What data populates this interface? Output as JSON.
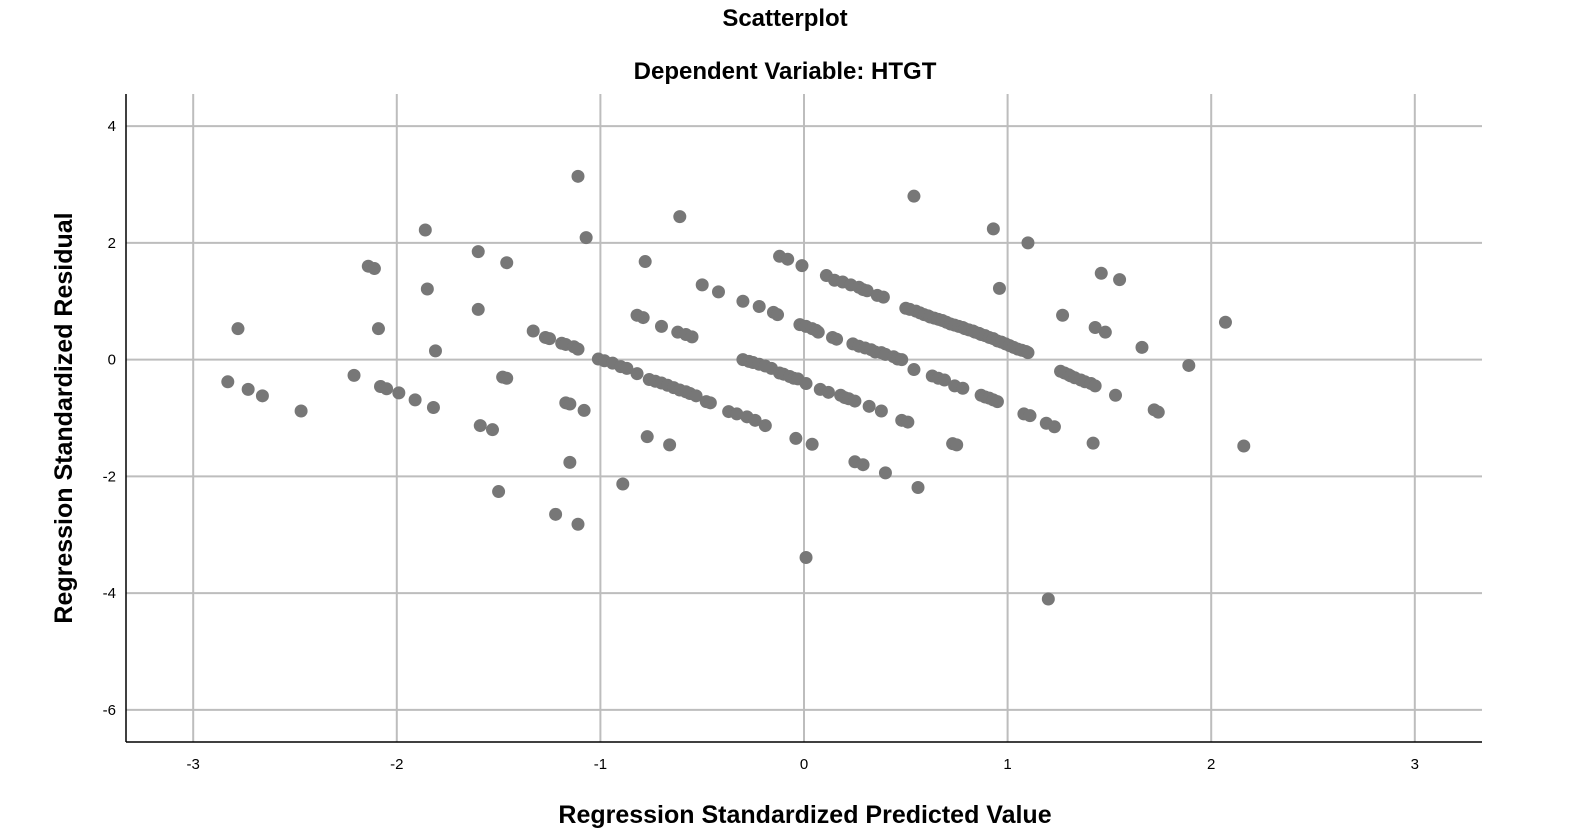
{
  "chart_data": {
    "type": "scatter",
    "title": "Scatterplot",
    "subtitle": "Dependent Variable: HTGT",
    "xlabel": "Regression Standardized Predicted Value",
    "ylabel": "Regression Standardized Residual",
    "xlim": [
      -3.33,
      3.33
    ],
    "ylim": [
      -6.55,
      4.55
    ],
    "xticks": [
      -3,
      -2,
      -1,
      0,
      1,
      2,
      3
    ],
    "yticks": [
      4,
      2,
      0,
      -2,
      -4,
      -6
    ],
    "grid": true,
    "marker_color": "#777777",
    "points": [
      [
        -2.83,
        -0.38
      ],
      [
        -2.78,
        0.53
      ],
      [
        -2.73,
        -0.51
      ],
      [
        -2.66,
        -0.62
      ],
      [
        -2.47,
        -0.88
      ],
      [
        -2.21,
        -0.27
      ],
      [
        -2.14,
        1.6
      ],
      [
        -2.11,
        1.56
      ],
      [
        -2.09,
        0.53
      ],
      [
        -2.08,
        -0.46
      ],
      [
        -2.05,
        -0.5
      ],
      [
        -1.99,
        -0.57
      ],
      [
        -1.91,
        -0.69
      ],
      [
        -1.86,
        2.22
      ],
      [
        -1.85,
        1.21
      ],
      [
        -1.82,
        -0.82
      ],
      [
        -1.81,
        0.15
      ],
      [
        -1.6,
        1.85
      ],
      [
        -1.6,
        0.86
      ],
      [
        -1.59,
        -1.13
      ],
      [
        -1.53,
        -1.2
      ],
      [
        -1.5,
        -2.26
      ],
      [
        -1.48,
        -0.3
      ],
      [
        -1.46,
        -0.32
      ],
      [
        -1.46,
        1.66
      ],
      [
        -1.33,
        0.49
      ],
      [
        -1.27,
        0.38
      ],
      [
        -1.25,
        0.36
      ],
      [
        -1.22,
        -2.65
      ],
      [
        -1.19,
        0.28
      ],
      [
        -1.17,
        0.26
      ],
      [
        -1.17,
        -0.74
      ],
      [
        -1.15,
        -0.76
      ],
      [
        -1.15,
        -1.76
      ],
      [
        -1.13,
        0.22
      ],
      [
        -1.11,
        3.14
      ],
      [
        -1.11,
        0.18
      ],
      [
        -1.11,
        -2.82
      ],
      [
        -1.08,
        -0.87
      ],
      [
        -1.07,
        2.09
      ],
      [
        -1.01,
        0.01
      ],
      [
        -0.98,
        -0.02
      ],
      [
        -0.94,
        -0.06
      ],
      [
        -0.9,
        -0.12
      ],
      [
        -0.89,
        -2.13
      ],
      [
        -0.87,
        -0.15
      ],
      [
        -0.82,
        0.76
      ],
      [
        -0.82,
        -0.24
      ],
      [
        -0.79,
        0.72
      ],
      [
        -0.78,
        1.68
      ],
      [
        -0.77,
        -1.32
      ],
      [
        -0.76,
        -0.34
      ],
      [
        -0.73,
        -0.37
      ],
      [
        -0.7,
        -0.4
      ],
      [
        -0.7,
        0.57
      ],
      [
        -0.67,
        -0.44
      ],
      [
        -0.66,
        -1.46
      ],
      [
        -0.64,
        -0.48
      ],
      [
        -0.62,
        0.47
      ],
      [
        -0.61,
        -0.52
      ],
      [
        -0.61,
        2.45
      ],
      [
        -0.58,
        -0.55
      ],
      [
        -0.58,
        0.43
      ],
      [
        -0.56,
        -0.58
      ],
      [
        -0.55,
        0.39
      ],
      [
        -0.53,
        -0.62
      ],
      [
        -0.5,
        1.28
      ],
      [
        -0.48,
        -0.72
      ],
      [
        -0.46,
        -0.74
      ],
      [
        -0.42,
        1.16
      ],
      [
        -0.37,
        -0.89
      ],
      [
        -0.33,
        -0.93
      ],
      [
        -0.3,
        1.0
      ],
      [
        -0.3,
        0.0
      ],
      [
        -0.28,
        -0.98
      ],
      [
        -0.27,
        -0.03
      ],
      [
        -0.25,
        -0.05
      ],
      [
        -0.24,
        -1.04
      ],
      [
        -0.22,
        0.91
      ],
      [
        -0.22,
        -0.08
      ],
      [
        -0.19,
        -0.11
      ],
      [
        -0.19,
        -1.13
      ],
      [
        -0.16,
        -0.15
      ],
      [
        -0.15,
        0.81
      ],
      [
        -0.13,
        0.77
      ],
      [
        -0.12,
        1.77
      ],
      [
        -0.12,
        -0.23
      ],
      [
        -0.1,
        -0.25
      ],
      [
        -0.08,
        1.72
      ],
      [
        -0.07,
        -0.29
      ],
      [
        -0.05,
        -0.32
      ],
      [
        -0.04,
        -1.35
      ],
      [
        -0.03,
        -0.33
      ],
      [
        -0.02,
        0.6
      ],
      [
        -0.01,
        1.61
      ],
      [
        0.01,
        0.57
      ],
      [
        0.01,
        -0.41
      ],
      [
        0.01,
        -3.39
      ],
      [
        0.04,
        -1.45
      ],
      [
        0.04,
        0.53
      ],
      [
        0.06,
        0.5
      ],
      [
        0.07,
        0.47
      ],
      [
        0.08,
        -0.51
      ],
      [
        0.11,
        1.44
      ],
      [
        0.12,
        -0.56
      ],
      [
        0.14,
        0.38
      ],
      [
        0.15,
        1.36
      ],
      [
        0.16,
        0.35
      ],
      [
        0.18,
        -0.61
      ],
      [
        0.19,
        1.33
      ],
      [
        0.2,
        -0.65
      ],
      [
        0.22,
        -0.67
      ],
      [
        0.23,
        1.28
      ],
      [
        0.24,
        0.27
      ],
      [
        0.25,
        -0.71
      ],
      [
        0.25,
        -1.75
      ],
      [
        0.27,
        1.24
      ],
      [
        0.27,
        0.23
      ],
      [
        0.29,
        1.2
      ],
      [
        0.29,
        -1.8
      ],
      [
        0.3,
        0.2
      ],
      [
        0.31,
        1.18
      ],
      [
        0.32,
        -0.8
      ],
      [
        0.33,
        0.17
      ],
      [
        0.35,
        0.13
      ],
      [
        0.36,
        1.1
      ],
      [
        0.38,
        0.12
      ],
      [
        0.38,
        -0.88
      ],
      [
        0.39,
        1.07
      ],
      [
        0.4,
        0.09
      ],
      [
        0.4,
        -1.94
      ],
      [
        0.44,
        0.05
      ],
      [
        0.46,
        0.01
      ],
      [
        0.48,
        0.0
      ],
      [
        0.48,
        -1.04
      ],
      [
        0.5,
        0.88
      ],
      [
        0.51,
        -1.07
      ],
      [
        0.52,
        0.86
      ],
      [
        0.54,
        2.8
      ],
      [
        0.54,
        -0.17
      ],
      [
        0.55,
        0.83
      ],
      [
        0.56,
        -2.19
      ],
      [
        0.57,
        0.8
      ],
      [
        0.59,
        0.77
      ],
      [
        0.61,
        0.75
      ],
      [
        0.62,
        0.73
      ],
      [
        0.63,
        -0.28
      ],
      [
        0.64,
        0.71
      ],
      [
        0.66,
        0.69
      ],
      [
        0.66,
        -0.32
      ],
      [
        0.68,
        0.67
      ],
      [
        0.69,
        -0.35
      ],
      [
        0.7,
        0.64
      ],
      [
        0.72,
        0.61
      ],
      [
        0.73,
        -1.44
      ],
      [
        0.74,
        0.59
      ],
      [
        0.74,
        -0.45
      ],
      [
        0.75,
        -1.46
      ],
      [
        0.76,
        0.57
      ],
      [
        0.78,
        0.55
      ],
      [
        0.78,
        -0.49
      ],
      [
        0.79,
        0.53
      ],
      [
        0.81,
        0.51
      ],
      [
        0.83,
        0.49
      ],
      [
        0.84,
        0.47
      ],
      [
        0.86,
        0.45
      ],
      [
        0.87,
        0.43
      ],
      [
        0.87,
        -0.61
      ],
      [
        0.89,
        0.41
      ],
      [
        0.89,
        -0.64
      ],
      [
        0.91,
        0.38
      ],
      [
        0.91,
        -0.66
      ],
      [
        0.93,
        0.36
      ],
      [
        0.93,
        2.24
      ],
      [
        0.93,
        -0.69
      ],
      [
        0.95,
        0.32
      ],
      [
        0.95,
        -0.72
      ],
      [
        0.96,
        1.22
      ],
      [
        0.97,
        0.3
      ],
      [
        0.99,
        0.27
      ],
      [
        1.01,
        0.24
      ],
      [
        1.03,
        0.21
      ],
      [
        1.05,
        0.18
      ],
      [
        1.07,
        0.16
      ],
      [
        1.08,
        -0.93
      ],
      [
        1.09,
        0.14
      ],
      [
        1.1,
        2.0
      ],
      [
        1.1,
        0.12
      ],
      [
        1.11,
        -0.96
      ],
      [
        1.19,
        -1.09
      ],
      [
        1.2,
        -4.1
      ],
      [
        1.23,
        -1.15
      ],
      [
        1.26,
        -0.2
      ],
      [
        1.27,
        0.76
      ],
      [
        1.28,
        -0.23
      ],
      [
        1.3,
        -0.26
      ],
      [
        1.31,
        -0.28
      ],
      [
        1.33,
        -0.31
      ],
      [
        1.36,
        -0.35
      ],
      [
        1.38,
        -0.38
      ],
      [
        1.41,
        -0.41
      ],
      [
        1.42,
        -1.43
      ],
      [
        1.43,
        0.55
      ],
      [
        1.43,
        -0.45
      ],
      [
        1.46,
        1.48
      ],
      [
        1.48,
        0.47
      ],
      [
        1.53,
        -0.61
      ],
      [
        1.55,
        1.37
      ],
      [
        1.66,
        0.21
      ],
      [
        1.72,
        -0.86
      ],
      [
        1.74,
        -0.9
      ],
      [
        1.89,
        -0.1
      ],
      [
        2.07,
        0.64
      ],
      [
        2.16,
        -1.48
      ]
    ]
  }
}
